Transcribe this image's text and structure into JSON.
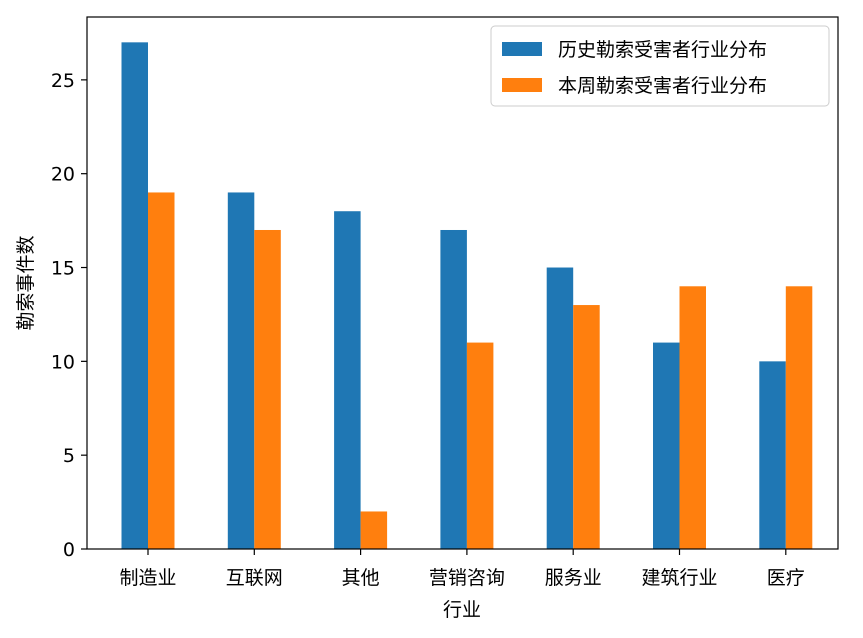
{
  "chart_data": {
    "type": "bar",
    "categories": [
      "制造业",
      "互联网",
      "其他",
      "营销咨询",
      "服务业",
      "建筑行业",
      "医疗"
    ],
    "series": [
      {
        "name": "历史勒索受害者行业分布",
        "color": "#1f77b4",
        "values": [
          27,
          19,
          18,
          17,
          15,
          11,
          10
        ]
      },
      {
        "name": "本周勒索受害者行业分布",
        "color": "#ff7f0e",
        "values": [
          19,
          17,
          2,
          11,
          13,
          14,
          14
        ]
      }
    ],
    "title": "",
    "xlabel": "行业",
    "ylabel": "勒索事件数",
    "ylim": [
      0,
      28.35
    ],
    "yticks": [
      0,
      5,
      10,
      15,
      20,
      25
    ],
    "grid": false,
    "legend_position": "top-right"
  }
}
